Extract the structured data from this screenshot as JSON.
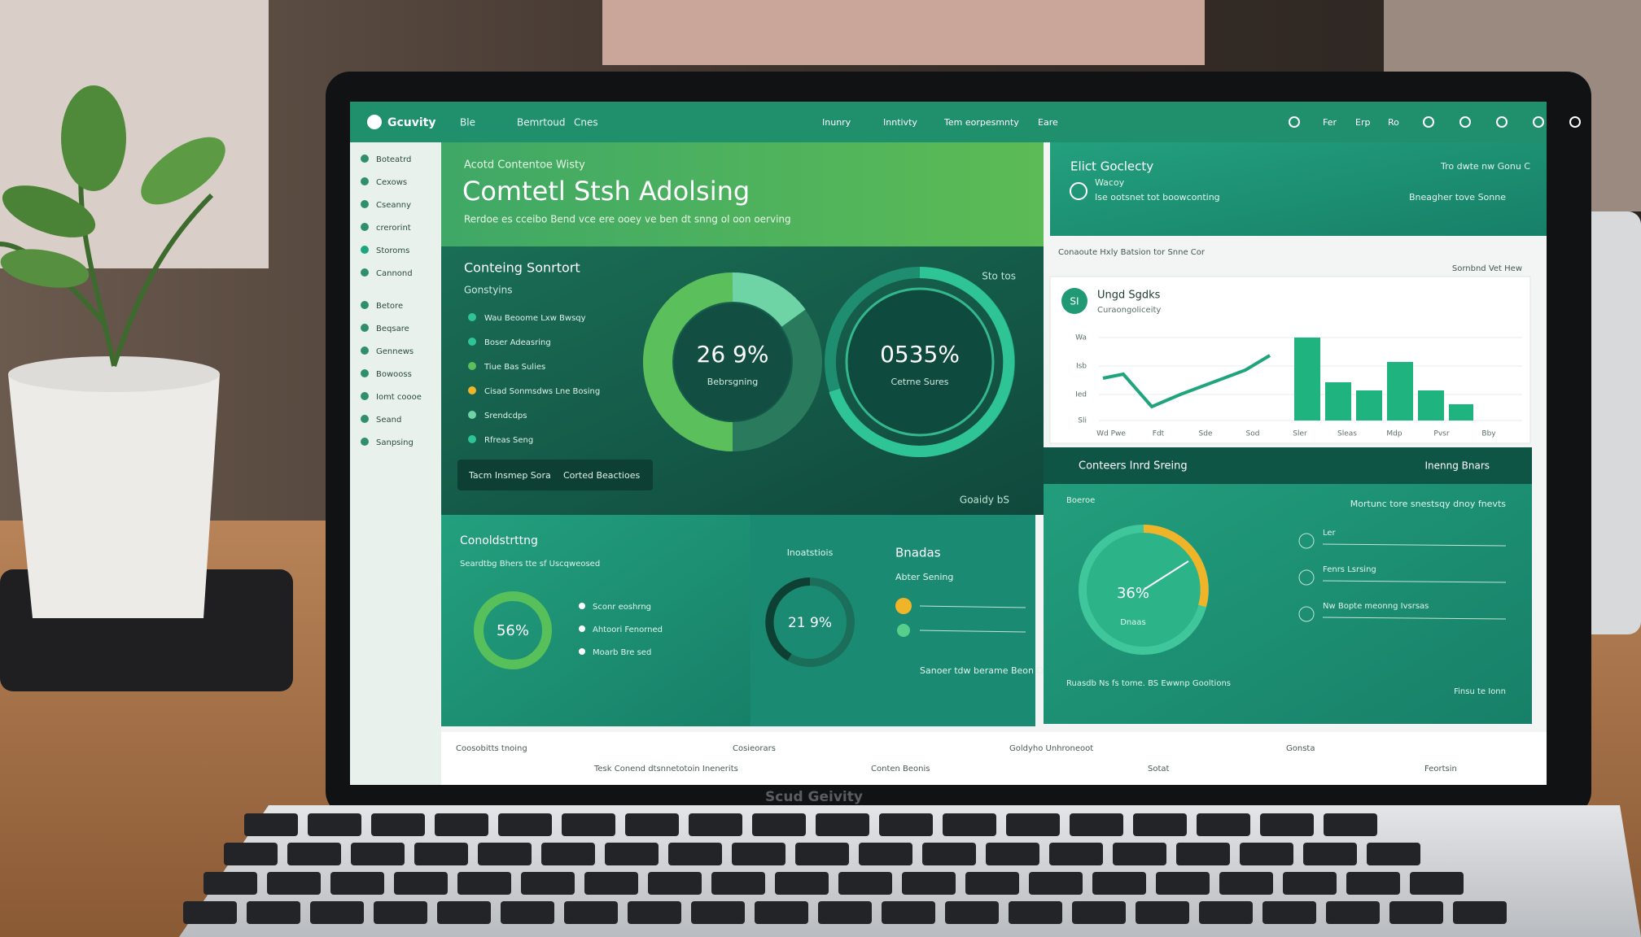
{
  "header": {
    "brand": "Gcuvity",
    "nav": [
      "Ble",
      "Bemrtoud",
      "Cnes"
    ],
    "right_nav": [
      "Inunry",
      "Inntivty",
      "Tem eorpesmnty",
      "Eare"
    ],
    "icons": [
      "Fer",
      "Erp",
      "Ro"
    ]
  },
  "sidebar": {
    "items": [
      "Boteatrd",
      "Cexows",
      "Cseanny",
      "crerorint",
      "Storoms",
      "Cannond",
      "Betore",
      "Beqsare",
      "Gennews",
      "Bowooss",
      "Iomt coooe",
      "Seand",
      "Sanpsing"
    ]
  },
  "hero": {
    "kicker": "Acotd Contentoe Wisty",
    "title": "Comtetl Stsh Adolsing",
    "subtitle": "Rerdoe es cceibo Bend vce ere ooey ve ben dt snng ol oon oerving"
  },
  "overview": {
    "title": "Conteing Sonrtort",
    "subtitle": "Gonstyins",
    "legend": [
      "Wau Beoome Lxw Bwsqy",
      "Boser Adeasring",
      "Tiue Bas Sulies",
      "Cisad Sonmsdws Lne Bosing",
      "Srendcdps",
      "Rfreas Seng"
    ],
    "filters": [
      "Tacm Insmep Sora",
      "Corted Beactioes"
    ],
    "tag": "Sto tos",
    "footer": "Goaidy bS"
  },
  "donut_left": {
    "label": "26 9%",
    "caption": "Bebrsgning"
  },
  "donut_right": {
    "label": "0535%",
    "caption": "Cetrne Sures"
  },
  "insight_card": {
    "title": "Elict Goclecty",
    "sub": "Wacoy",
    "text": "Ise ootsnet tot boowconting",
    "right": "Tro dwte nw Gonu C",
    "link": "Bneagher tove Sonne"
  },
  "trend_card": {
    "caption_left": "Conaoute Hxly Batsion tor Snne Cor",
    "caption_right": "Sornbnd Vet Hew",
    "badge": "SI",
    "title": "Ungd Sgdks",
    "subtitle": "Curaongoliceity",
    "y_labels": [
      "Wa",
      "Isb",
      "Ied",
      "Sli"
    ],
    "x_labels": [
      "Wd Pwe",
      "Fdt",
      "Sde",
      "Sod",
      "Sler",
      "Sleas",
      "Mdp",
      "Pvsr",
      "Bby"
    ]
  },
  "panel_a": {
    "title": "Conoldstrttng",
    "subtitle": "Seardtbg Bhers tte sf Uscqweosed",
    "label": "56%",
    "legend": [
      "Sconr eoshrng",
      "Ahtoori Fenorned",
      "Moarb Bre sed"
    ]
  },
  "panel_b": {
    "title": "Inoatstiois",
    "label": "21 9%"
  },
  "panel_c": {
    "title": "Bnadas",
    "subtitle": "Abter Sening",
    "footer": "Sanoer tdw berame Beon Ds Fnrg"
  },
  "panel_d": {
    "title": "Conteers Inrd Sreing",
    "action": "Inenng Bnars",
    "sub": "Boeroe",
    "label": "36%",
    "caption": "Dnaas",
    "right_title": "Mortunc tore snestsqy dnoy fnevts",
    "rows": [
      "Ler",
      "Fenrs Lsrsing",
      "Nw Bopte meonng Ivsrsas"
    ],
    "footer": "Ruasdb Ns fs tome. BS Ewwnp Gooltions",
    "footer_right": "Finsu te Ionn"
  },
  "footer_strip": {
    "items": [
      "Coosobitts tnoing",
      "Tesk Conend dtsnnetotoin Inenerits",
      "Cosieorars",
      "Conten Beonis",
      "Goldyho Unhroneoot",
      "Sotat",
      "Gonsta",
      "Feortsin"
    ]
  },
  "laptop_brand": "Scud Geivity"
}
